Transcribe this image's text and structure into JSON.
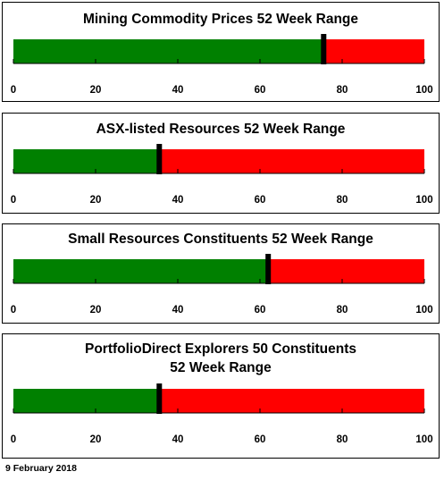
{
  "chart_data": [
    {
      "type": "bar",
      "title_lines": [
        "Mining Commodity Prices 52 Week Range"
      ],
      "value": 75.5,
      "xlim": [
        0,
        100
      ],
      "ticks": [
        0,
        20,
        40,
        60,
        80,
        100
      ],
      "tick_labels": [
        "0",
        "20",
        "40",
        "60",
        "80",
        "100"
      ],
      "colors": {
        "below": "#008000",
        "above": "#ff0000",
        "marker": "#000000"
      }
    },
    {
      "type": "bar",
      "title_lines": [
        "ASX-listed Resources 52 Week Range"
      ],
      "value": 35.5,
      "xlim": [
        0,
        100
      ],
      "ticks": [
        0,
        20,
        40,
        60,
        80,
        100
      ],
      "tick_labels": [
        "0",
        "20",
        "40",
        "60",
        "80",
        "100"
      ],
      "colors": {
        "below": "#008000",
        "above": "#ff0000",
        "marker": "#000000"
      }
    },
    {
      "type": "bar",
      "title_lines": [
        "Small Resources Constituents 52 Week Range"
      ],
      "value": 62,
      "xlim": [
        0,
        100
      ],
      "ticks": [
        0,
        20,
        40,
        60,
        80,
        100
      ],
      "tick_labels": [
        "0",
        "20",
        "40",
        "60",
        "80",
        "100"
      ],
      "colors": {
        "below": "#008000",
        "above": "#ff0000",
        "marker": "#000000"
      }
    },
    {
      "type": "bar",
      "title_lines": [
        "PortfolioDirect Explorers 50 Constituents",
        "52 Week Range"
      ],
      "value": 35.5,
      "xlim": [
        0,
        100
      ],
      "ticks": [
        0,
        20,
        40,
        60,
        80,
        100
      ],
      "tick_labels": [
        "0",
        "20",
        "40",
        "60",
        "80",
        "100"
      ],
      "colors": {
        "below": "#008000",
        "above": "#ff0000",
        "marker": "#000000"
      }
    }
  ],
  "footer": {
    "date": "9 February 2018"
  }
}
